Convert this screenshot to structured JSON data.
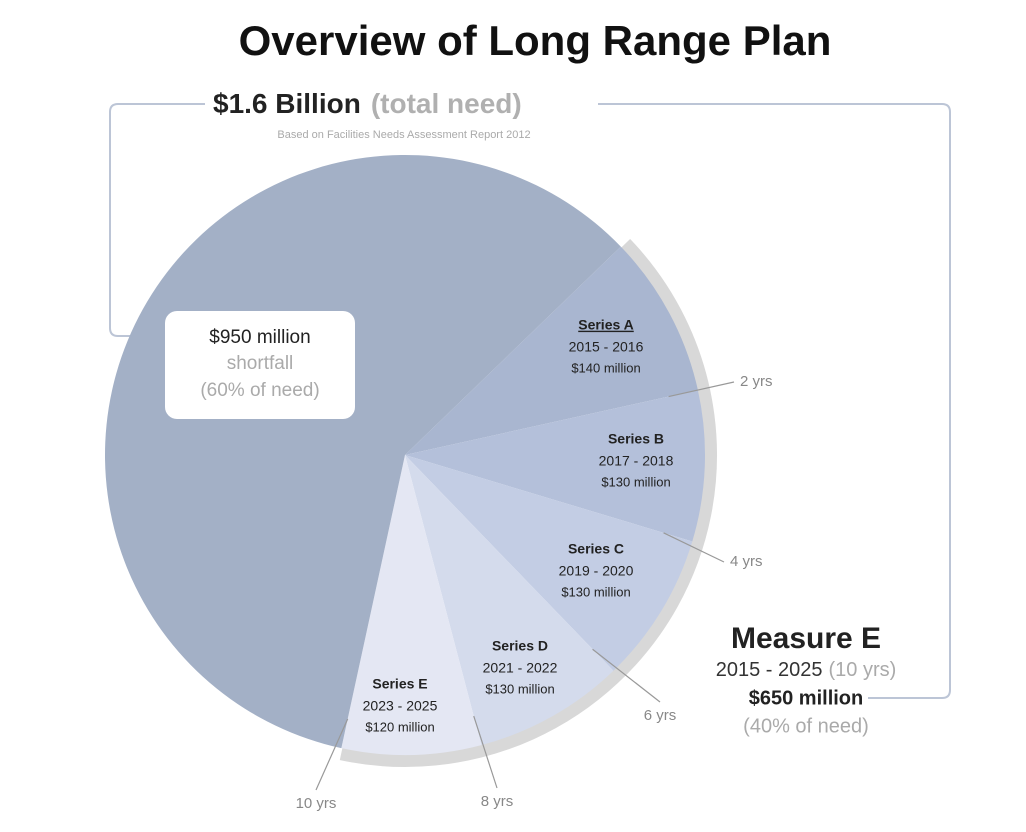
{
  "chart_data": {
    "type": "pie",
    "title": "Overview of Long Range Plan",
    "total": {
      "label": "$1.6 Billion",
      "note": "(total need)",
      "source": "Based on Facilities Needs Assessment Report 2012"
    },
    "categories": [
      "Series A",
      "Series B",
      "Series C",
      "Series D",
      "Series E",
      "shortfall"
    ],
    "periods": [
      "2015 - 2016",
      "2017 - 2018",
      "2019 - 2020",
      "2021 - 2022",
      "2023 - 2025",
      null
    ],
    "values": [
      140,
      130,
      130,
      130,
      120,
      950
    ],
    "value_labels": [
      "$140 million",
      "$130 million",
      "$130 million",
      "$130 million",
      "$120 million",
      "$950 million"
    ],
    "colors": [
      "#a9b6d0",
      "#b4c0da",
      "#c3cde4",
      "#d4dbec",
      "#e4e7f3",
      "#a3b0c6"
    ],
    "shortfall_share": "(60% of need)",
    "measure": {
      "name": "Measure E",
      "period": "2015 - 2025",
      "duration": "(10 yrs)",
      "value_label": "$650 million",
      "share": "(40% of need)"
    },
    "year_marks": [
      "2 yrs",
      "4 yrs",
      "6 yrs",
      "8 yrs",
      "10 yrs"
    ]
  }
}
